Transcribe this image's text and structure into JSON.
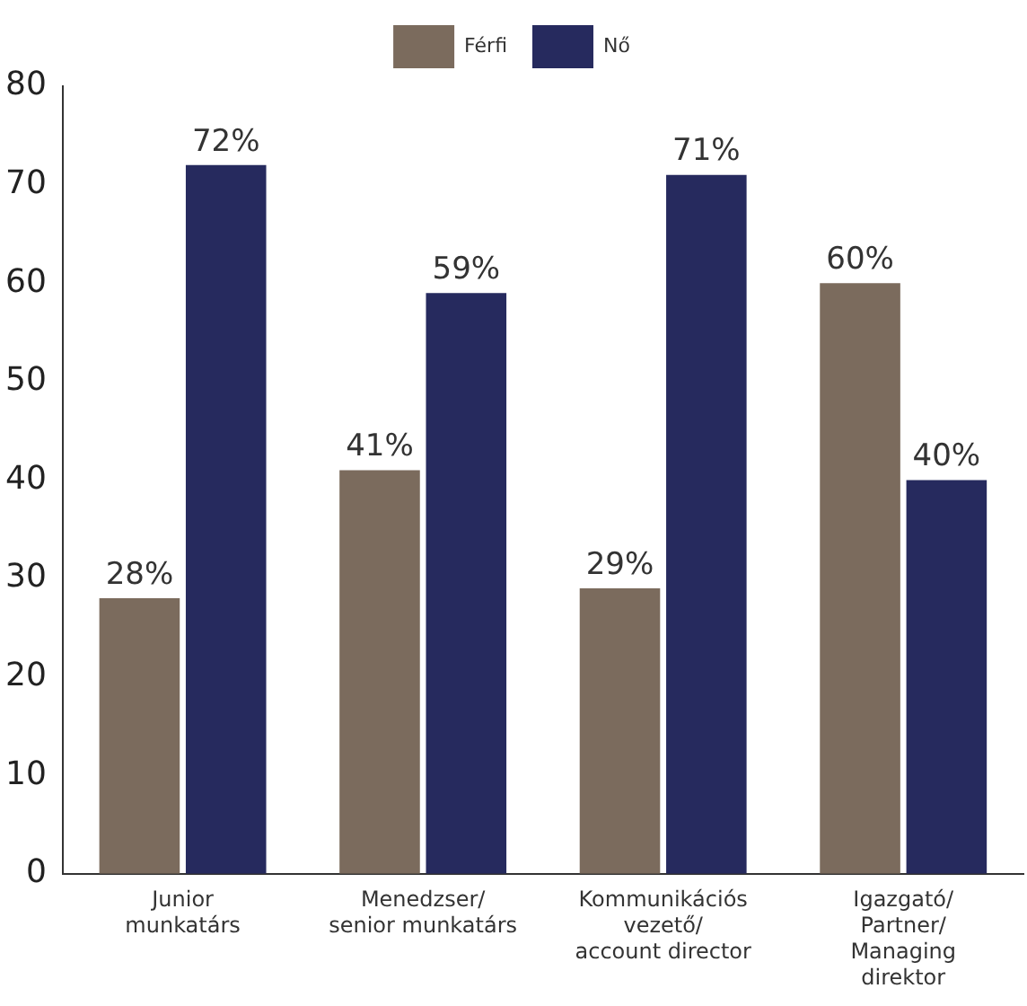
{
  "chart_data": {
    "type": "bar",
    "categories": [
      "Junior\nmunkatárs",
      "Menedzser/\nsenior munkatárs",
      "Kommunikációs\nvezető/\naccount director",
      "Igazgató/\nPartner/\nManaging\ndirektor"
    ],
    "series": [
      {
        "name": "Férfi",
        "color": "#7b6b5d",
        "values": [
          28,
          41,
          29,
          60
        ],
        "value_labels": [
          "28%",
          "41%",
          "29%",
          "60%"
        ]
      },
      {
        "name": "Nő",
        "color": "#262a5e",
        "values": [
          72,
          59,
          71,
          40
        ],
        "value_labels": [
          "72%",
          "59%",
          "71%",
          "40%"
        ]
      }
    ],
    "ylim": [
      0,
      80
    ],
    "yticks": [
      0,
      10,
      20,
      30,
      40,
      50,
      60,
      70,
      80
    ],
    "grid": false,
    "legend": "top"
  }
}
